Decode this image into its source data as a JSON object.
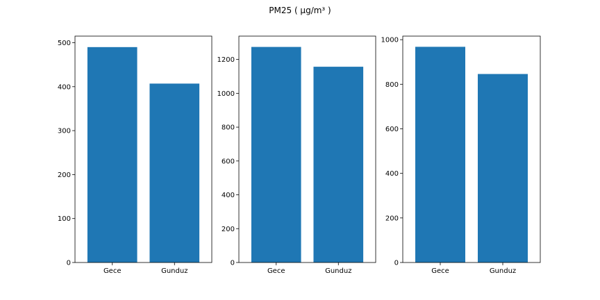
{
  "suptitle": "PM25 ( µg/m³ )",
  "colors": {
    "bar": "#1f77b4",
    "axis": "#000000",
    "background": "#ffffff"
  },
  "chart_data": [
    {
      "type": "bar",
      "categories": [
        "Gece",
        "Gunduz"
      ],
      "values": [
        490,
        407
      ],
      "ylim": [
        0,
        515
      ],
      "yticks": [
        0,
        100,
        200,
        300,
        400,
        500
      ],
      "ytick_labels": [
        "0",
        "100",
        "200",
        "300",
        "400",
        "500"
      ],
      "grid": false
    },
    {
      "type": "bar",
      "categories": [
        "Gece",
        "Gunduz"
      ],
      "values": [
        1274,
        1157
      ],
      "ylim": [
        0,
        1338
      ],
      "yticks": [
        0,
        200,
        400,
        600,
        800,
        1000,
        1200
      ],
      "ytick_labels": [
        "0",
        "200",
        "400",
        "600",
        "800",
        "1000",
        "1200"
      ],
      "grid": false
    },
    {
      "type": "bar",
      "categories": [
        "Gece",
        "Gunduz"
      ],
      "values": [
        968,
        846
      ],
      "ylim": [
        0,
        1016
      ],
      "yticks": [
        0,
        200,
        400,
        600,
        800,
        1000
      ],
      "ytick_labels": [
        "0",
        "200",
        "400",
        "600",
        "800",
        "1000"
      ],
      "grid": false
    }
  ]
}
